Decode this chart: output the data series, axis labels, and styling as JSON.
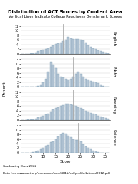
{
  "title": "Distribution of ACT Scores by Content Area",
  "subtitle": "Vertical Lines Indicate College Readiness Benchmark Scores",
  "xlabel": "Score",
  "ylabel": "Percent",
  "footer1": "Graduating Class 2012",
  "footer2": "Data from www.act.org/newsroom/data/2012/pdf/profileNational2012.pdf",
  "subjects": [
    "English",
    "Math",
    "Reading",
    "Science"
  ],
  "benchmark_scores": {
    "English": 18,
    "Math": 22,
    "Reading": 22,
    "Science": 24
  },
  "bar_color": "#b8c9d8",
  "bar_edgecolor": "#7a9ab0",
  "line_color": "#aaaaaa",
  "scores": [
    1,
    2,
    3,
    4,
    5,
    6,
    7,
    8,
    9,
    10,
    11,
    12,
    13,
    14,
    15,
    16,
    17,
    18,
    19,
    20,
    21,
    22,
    23,
    24,
    25,
    26,
    27,
    28,
    29,
    30,
    31,
    32,
    33,
    34,
    35,
    36
  ],
  "english_pct": [
    0.0,
    0.0,
    0.1,
    0.1,
    0.2,
    0.4,
    0.7,
    1.1,
    1.5,
    1.9,
    2.2,
    2.5,
    3.0,
    3.6,
    4.2,
    4.5,
    5.0,
    5.5,
    6.2,
    7.2,
    6.8,
    6.5,
    6.5,
    6.5,
    6.2,
    5.8,
    4.8,
    3.8,
    3.0,
    2.5,
    2.0,
    1.5,
    1.1,
    0.8,
    0.5,
    0.3
  ],
  "math_pct": [
    0.0,
    0.0,
    0.0,
    0.0,
    0.1,
    0.1,
    0.2,
    0.5,
    1.0,
    2.0,
    3.5,
    6.5,
    11.0,
    9.5,
    8.0,
    5.5,
    4.5,
    4.0,
    3.5,
    3.2,
    3.5,
    4.5,
    5.5,
    6.5,
    5.5,
    4.5,
    3.5,
    3.0,
    2.5,
    2.2,
    2.0,
    1.5,
    1.0,
    0.5,
    0.2,
    0.1
  ],
  "reading_pct": [
    0.0,
    0.0,
    0.0,
    0.1,
    0.1,
    0.3,
    0.6,
    1.0,
    1.4,
    1.8,
    2.2,
    2.8,
    3.5,
    4.5,
    5.0,
    5.5,
    6.0,
    6.5,
    7.0,
    7.0,
    6.8,
    6.5,
    6.0,
    5.5,
    5.0,
    4.5,
    4.0,
    3.5,
    3.0,
    2.5,
    2.2,
    1.8,
    1.5,
    1.2,
    0.9,
    0.5
  ],
  "science_pct": [
    0.0,
    0.0,
    0.0,
    0.0,
    0.1,
    0.3,
    0.5,
    1.0,
    1.5,
    2.0,
    3.0,
    3.5,
    4.5,
    5.0,
    6.0,
    7.0,
    8.0,
    8.5,
    8.2,
    7.5,
    6.8,
    6.0,
    5.5,
    5.5,
    4.8,
    3.8,
    2.8,
    2.0,
    1.5,
    1.0,
    0.5,
    0.3,
    0.1,
    0.0,
    0.0,
    0.0
  ],
  "ylim": [
    0,
    13
  ],
  "yticks": [
    0,
    2,
    4,
    6,
    8,
    10,
    12
  ],
  "xticks": [
    5,
    10,
    15,
    20,
    25,
    30,
    35
  ],
  "xlim": [
    1,
    37
  ],
  "title_fontsize": 4.8,
  "subtitle_fontsize": 3.8,
  "label_fontsize": 4.0,
  "tick_fontsize": 3.5,
  "subject_fontsize": 4.2,
  "footer_fontsize": 3.0
}
